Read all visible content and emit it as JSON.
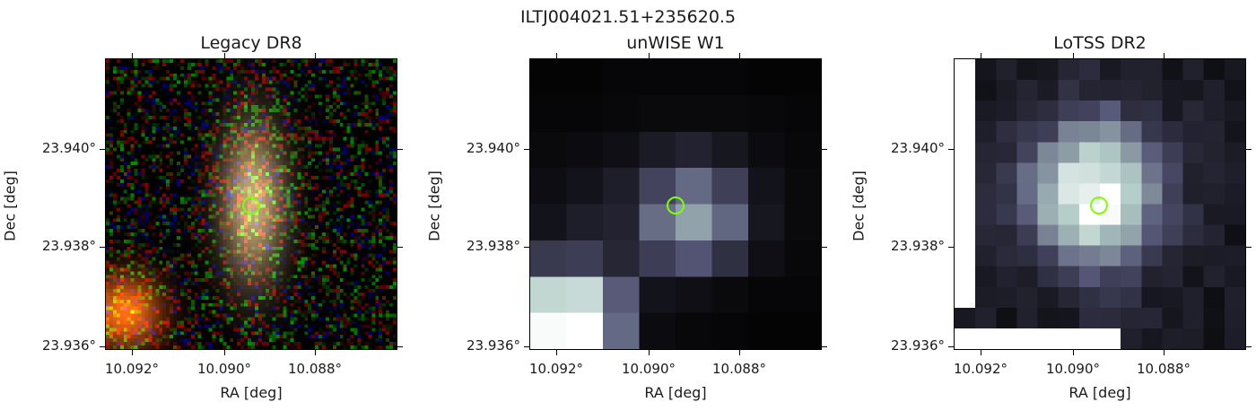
{
  "suptitle": "ILTJ004021.51+235620.5",
  "panels": [
    {
      "title": "Legacy DR8",
      "xlabel": "RA [deg]",
      "ylabel": "Dec [deg]",
      "xticks": [
        "10.092°",
        "10.090°",
        "10.088°"
      ],
      "yticks": [
        "23.940°",
        "23.938°",
        "23.936°"
      ],
      "image": "optical-rgb-galaxy"
    },
    {
      "title": "unWISE W1",
      "xlabel": "RA [deg]",
      "ylabel": "Dec [deg]",
      "xticks": [
        "10.092°",
        "10.090°",
        "10.088°"
      ],
      "yticks": [
        "23.940°",
        "23.938°",
        "23.936°"
      ],
      "image": "infrared-grayscale-pixels"
    },
    {
      "title": "LoTSS DR2",
      "xlabel": "RA [deg]",
      "ylabel": "Dec [deg]",
      "xticks": [
        "10.092°",
        "10.090°",
        "10.088°"
      ],
      "yticks": [
        "23.940°",
        "23.938°",
        "23.936°"
      ],
      "image": "radio-grayscale-blob"
    }
  ],
  "marker_color": "#7fff00",
  "cmap": "bone"
}
